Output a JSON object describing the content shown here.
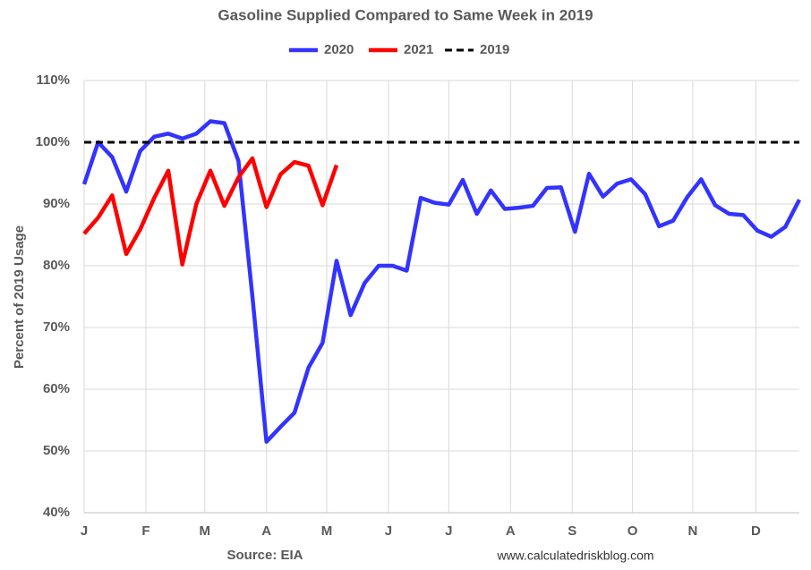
{
  "chart_data": {
    "type": "line",
    "title": "Gasoline Supplied Compared to Same Week in 2019",
    "y_label": "Percent of 2019 Usage",
    "source": "Source: EIA",
    "credit": "www.calculatedriskblog.com",
    "x": [
      0,
      1,
      2,
      3,
      4,
      5,
      6,
      7,
      8,
      9,
      10,
      11,
      12,
      13,
      14,
      15,
      16,
      17,
      18,
      19,
      20,
      21,
      22,
      23,
      24,
      25,
      26,
      27,
      28,
      29,
      30,
      31,
      32,
      33,
      34,
      35,
      36,
      37,
      38,
      39,
      40,
      41,
      42,
      43,
      44,
      45,
      46,
      47,
      48,
      49,
      50,
      51
    ],
    "xlim": [
      0,
      51
    ],
    "xticks": [
      {
        "value": 0,
        "label": "J"
      },
      {
        "value": 4.4,
        "label": "F"
      },
      {
        "value": 8.6,
        "label": "M"
      },
      {
        "value": 13,
        "label": "A"
      },
      {
        "value": 17.3,
        "label": "M"
      },
      {
        "value": 21.7,
        "label": "J"
      },
      {
        "value": 26,
        "label": "J"
      },
      {
        "value": 30.4,
        "label": "A"
      },
      {
        "value": 34.8,
        "label": "S"
      },
      {
        "value": 39.1,
        "label": "O"
      },
      {
        "value": 43.4,
        "label": "N"
      },
      {
        "value": 47.9,
        "label": "D"
      }
    ],
    "ylim": [
      40,
      110
    ],
    "yticks": [
      {
        "value": 40,
        "label": "40%"
      },
      {
        "value": 50,
        "label": "50%"
      },
      {
        "value": 60,
        "label": "60%"
      },
      {
        "value": 70,
        "label": "70%"
      },
      {
        "value": 80,
        "label": "80%"
      },
      {
        "value": 90,
        "label": "90%"
      },
      {
        "value": 100,
        "label": "100%"
      },
      {
        "value": 110,
        "label": "110%"
      }
    ],
    "grid": true,
    "legend": "top",
    "series": [
      {
        "name": "2020",
        "color": "#3333ff",
        "dashed": false,
        "values": [
          93.2,
          100,
          97.6,
          92,
          98.6,
          100.9,
          101.4,
          100.6,
          101.4,
          103.4,
          103.1,
          97,
          75,
          51.5,
          53.9,
          56.2,
          63.5,
          67.5,
          80.8,
          72,
          77.2,
          80,
          80,
          79.2,
          91,
          90.2,
          89.9,
          93.9,
          88.4,
          92.2,
          89.2,
          89.4,
          89.7,
          92.6,
          92.7,
          85.5,
          94.9,
          91.2,
          93.3,
          94,
          91.6,
          86.4,
          87.3,
          91.1,
          94,
          89.8,
          88.4,
          88.2,
          85.7,
          84.7,
          86.3,
          90.7
        ]
      },
      {
        "name": "2021",
        "color": "#ff0000",
        "dashed": false,
        "values": [
          85.2,
          87.8,
          91.4,
          81.9,
          85.9,
          91,
          95.4,
          80.2,
          90,
          95.4,
          89.7,
          94.3,
          97.4,
          89.5,
          94.8,
          96.8,
          96.2,
          89.8,
          96.3,
          null,
          null,
          null,
          null,
          null,
          null,
          null,
          null,
          null,
          null,
          null,
          null,
          null,
          null,
          null,
          null,
          null,
          null,
          null,
          null,
          null,
          null,
          null,
          null,
          null,
          null,
          null,
          null,
          null,
          null,
          null,
          null,
          null
        ]
      },
      {
        "name": "2019",
        "color": "#000000",
        "dashed": true,
        "values": [
          100,
          100,
          100,
          100,
          100,
          100,
          100,
          100,
          100,
          100,
          100,
          100,
          100,
          100,
          100,
          100,
          100,
          100,
          100,
          100,
          100,
          100,
          100,
          100,
          100,
          100,
          100,
          100,
          100,
          100,
          100,
          100,
          100,
          100,
          100,
          100,
          100,
          100,
          100,
          100,
          100,
          100,
          100,
          100,
          100,
          100,
          100,
          100,
          100,
          100,
          100,
          100
        ]
      }
    ]
  }
}
